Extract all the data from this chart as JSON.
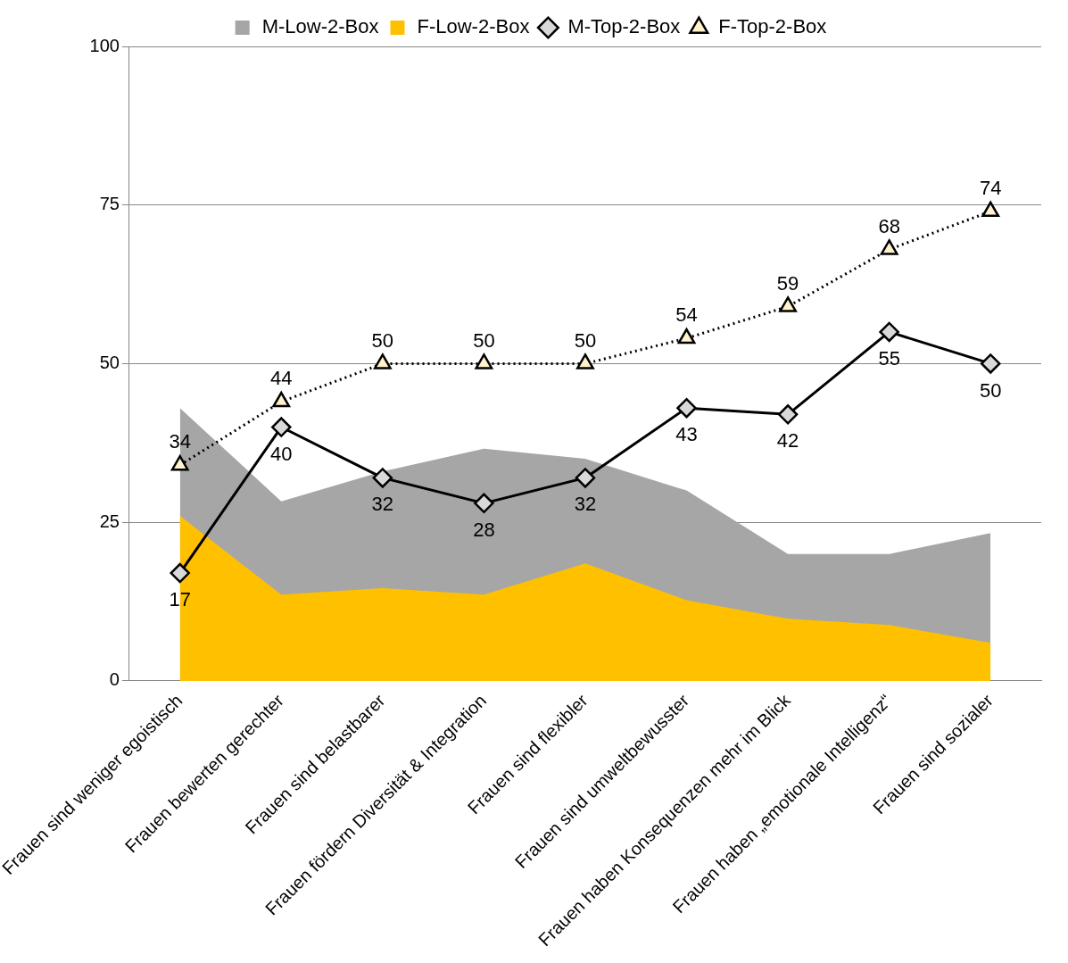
{
  "chart_data": {
    "type": "line",
    "categories": [
      "Frauen sind weniger egoistisch",
      "Frauen bewerten gerechter",
      "Frauen sind belastbarer",
      "Frauen fördern Diversität & Integration",
      "Frauen sind flexibler",
      "Frauen sind umweltbewusster",
      "Frauen haben Konsequenzen mehr im Blick",
      "Frauen haben „emotionale Intelligenz“",
      "Frauen sind sozialer"
    ],
    "series": [
      {
        "name": "M-Low-2-Box",
        "type": "area",
        "color": "#a6a6a6",
        "values": [
          43,
          28.3,
          33,
          36.6,
          35,
          30,
          20,
          20,
          23.3
        ]
      },
      {
        "name": "F-Low-2-Box",
        "type": "area",
        "color": "#ffc000",
        "values": [
          26,
          13.6,
          14.6,
          13.6,
          18.5,
          12.7,
          9.8,
          8.8,
          6
        ]
      },
      {
        "name": "M-Top-2-Box",
        "color": "#000000",
        "marker": "diamond",
        "line_style": "solid",
        "values": [
          17,
          40,
          32,
          28,
          32,
          43,
          42,
          55,
          50
        ],
        "value_labels": [
          "17",
          "40",
          "32",
          "28",
          "32",
          "43",
          "42",
          "55",
          "50"
        ]
      },
      {
        "name": "F-Top-2-Box",
        "color": "#000000",
        "marker": "triangle",
        "line_style": "dotted",
        "values": [
          34,
          44,
          50,
          50,
          50,
          54,
          59,
          68,
          74
        ],
        "value_labels": [
          "34",
          "44",
          "50",
          "50",
          "50",
          "54",
          "59",
          "68",
          "74"
        ]
      }
    ],
    "ylim": [
      0,
      100
    ],
    "yticks": [
      0,
      25,
      50,
      75,
      100
    ],
    "grid": "y",
    "legend": "top"
  }
}
